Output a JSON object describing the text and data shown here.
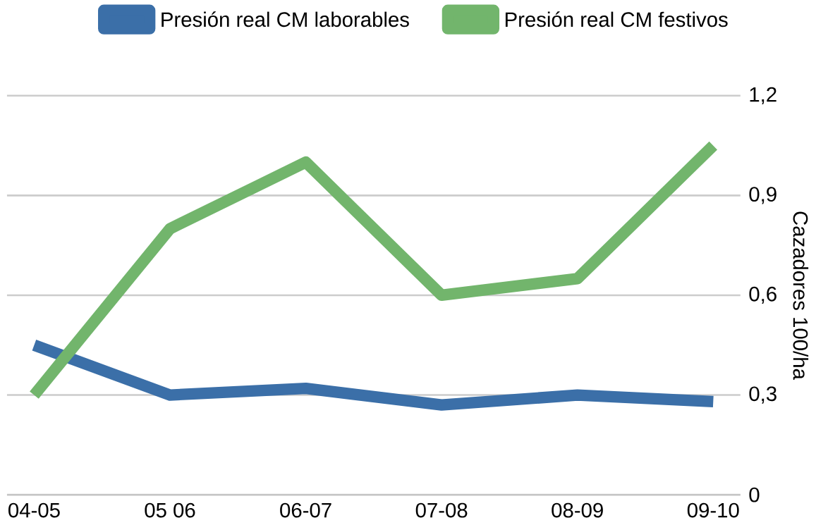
{
  "chart_data": {
    "type": "line",
    "categories": [
      "04-05",
      "05 06",
      "06-07",
      "07-08",
      "08-09",
      "09-10"
    ],
    "series": [
      {
        "name": "Presión real CM laborables",
        "color": "#3b6fa8",
        "values": [
          0.45,
          0.3,
          0.32,
          0.27,
          0.3,
          0.28
        ]
      },
      {
        "name": "Presión real CM festivos",
        "color": "#72b56c",
        "values": [
          0.3,
          0.8,
          1.0,
          0.6,
          0.65,
          1.05
        ]
      }
    ],
    "ylabel": "Cazadores 100/ha",
    "ylim": [
      0,
      1.2
    ],
    "yticks": [
      0,
      {
        "value": 0.3,
        "label": "0,3"
      },
      {
        "value": 0.6,
        "label": "0,6"
      },
      {
        "value": 0.9,
        "label": "0,9"
      },
      {
        "value": 1.2,
        "label": "1,2"
      }
    ],
    "grid": "y",
    "legend": "top right",
    "marker": "none",
    "line_style": "solid"
  }
}
